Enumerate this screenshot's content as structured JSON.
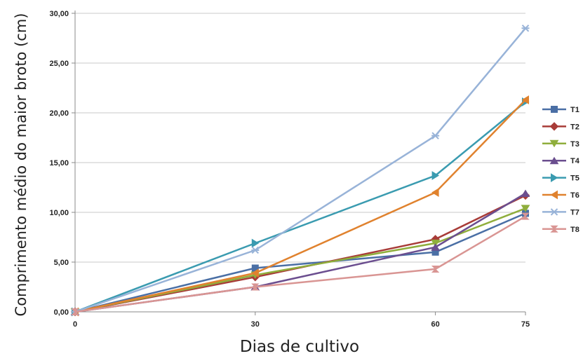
{
  "chart_data": {
    "type": "line",
    "title": "",
    "xlabel": "Dias de cultivo",
    "ylabel": "Comprimento médio do maior broto (cm)",
    "x": [
      0,
      30,
      60,
      75
    ],
    "x_tick_labels": [
      "0",
      "30",
      "60",
      "75"
    ],
    "ylim": [
      0,
      30
    ],
    "y_ticks": [
      0,
      5,
      10,
      15,
      20,
      25,
      30
    ],
    "y_tick_labels": [
      "0,00",
      "5,00",
      "10,00",
      "15,00",
      "20,00",
      "25,00",
      "30,00"
    ],
    "grid": "horizontal",
    "legend_position": "right",
    "series": [
      {
        "name": "T1",
        "color": "#4a6fa5",
        "marker": "square",
        "values": [
          0,
          4.4,
          6.0,
          9.9
        ]
      },
      {
        "name": "T2",
        "color": "#a83c38",
        "marker": "diamond",
        "values": [
          0,
          3.5,
          7.3,
          11.7
        ]
      },
      {
        "name": "T3",
        "color": "#8fae3c",
        "marker": "triangle-down",
        "values": [
          0,
          3.7,
          6.9,
          10.4
        ]
      },
      {
        "name": "T4",
        "color": "#6b4e8f",
        "marker": "triangle-up",
        "values": [
          0,
          2.5,
          6.5,
          11.9
        ]
      },
      {
        "name": "T5",
        "color": "#3a9bb0",
        "marker": "triangle-right",
        "values": [
          0,
          6.9,
          13.7,
          21.1
        ]
      },
      {
        "name": "T6",
        "color": "#e0822e",
        "marker": "triangle-left",
        "values": [
          0,
          3.9,
          12.0,
          21.3
        ]
      },
      {
        "name": "T7",
        "color": "#98b3d8",
        "marker": "star",
        "values": [
          0,
          6.2,
          17.7,
          28.5
        ]
      },
      {
        "name": "T8",
        "color": "#d99593",
        "marker": "hourglass",
        "values": [
          0,
          2.5,
          4.3,
          9.6
        ]
      }
    ]
  }
}
